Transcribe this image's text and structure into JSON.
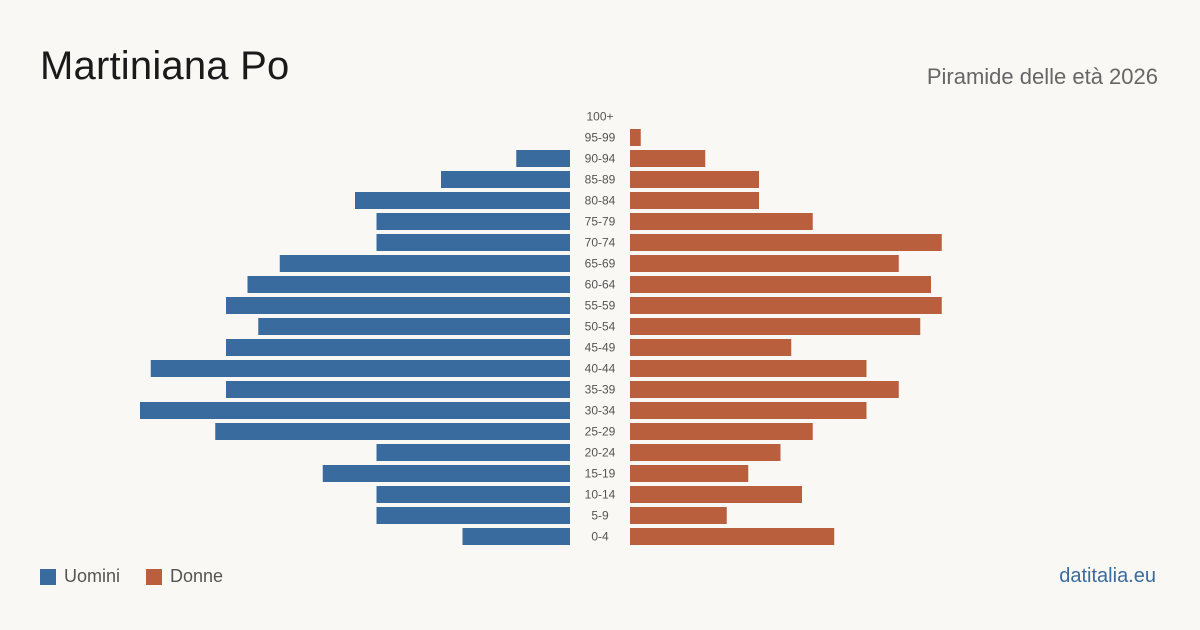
{
  "title": "Martiniana Po",
  "subtitle": "Piramide delle età 2026",
  "source": "datitalia.eu",
  "colors": {
    "male": "#3a6b9e",
    "female": "#b95f3e",
    "label": "#555555"
  },
  "chart_data": {
    "type": "bar",
    "orientation": "horizontal-pyramid",
    "categories": [
      "100+",
      "95-99",
      "90-94",
      "85-89",
      "80-84",
      "75-79",
      "70-74",
      "65-69",
      "60-64",
      "55-59",
      "50-54",
      "45-49",
      "40-44",
      "35-39",
      "30-34",
      "25-29",
      "20-24",
      "15-19",
      "10-14",
      "5-9",
      "0-4"
    ],
    "xlim": [
      0,
      40
    ],
    "series": [
      {
        "name": "Uomini",
        "values": [
          0,
          0,
          5,
          12,
          20,
          18,
          18,
          27,
          30,
          32,
          29,
          32,
          39,
          32,
          40,
          33,
          18,
          23,
          18,
          18,
          10
        ]
      },
      {
        "name": "Donne",
        "values": [
          0,
          1,
          7,
          12,
          12,
          17,
          29,
          25,
          28,
          29,
          27,
          15,
          22,
          25,
          22,
          17,
          14,
          11,
          16,
          9,
          19
        ]
      }
    ],
    "legend": "bottom-left",
    "grid": false
  }
}
